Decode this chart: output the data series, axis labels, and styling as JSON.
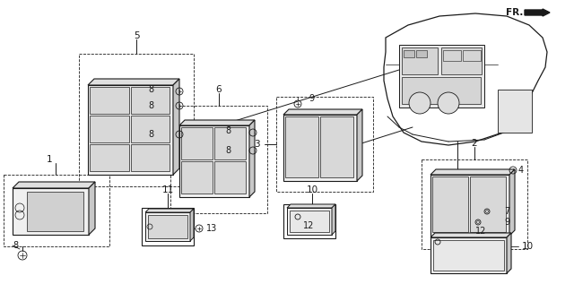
{
  "bg_color": "#ffffff",
  "line_color": "#1a1a1a",
  "fig_width": 6.4,
  "fig_height": 3.17,
  "dpi": 100,
  "gray": "#888888",
  "darkgray": "#555555"
}
